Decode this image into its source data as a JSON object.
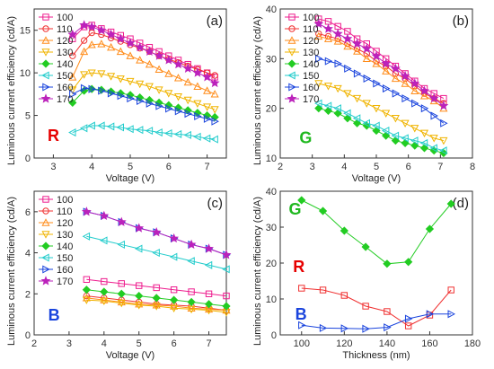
{
  "figure": {
    "ylabel_left": "Luminous current efficiency (cd/A)",
    "ylabel_right": "Luminous current efficiency (cd/A)"
  },
  "chart_data": [
    {
      "type": "line",
      "panel_tag": "(a)",
      "color_letter": "R",
      "color_letter_color": "#e60000",
      "xlabel": "Voltage (V)",
      "xlim": [
        2.5,
        7.5
      ],
      "ylim": [
        0,
        17.5
      ],
      "xticks": [
        3,
        4,
        5,
        6,
        7
      ],
      "yticks": [
        0,
        5,
        10,
        15
      ],
      "legend": "top-left",
      "x": [
        3.5,
        3.8,
        4.0,
        4.25,
        4.5,
        4.75,
        5.0,
        5.25,
        5.5,
        5.75,
        6.0,
        6.25,
        6.5,
        6.75,
        7.0,
        7.2
      ],
      "series": [
        {
          "name": "100",
          "color": "#ee1c8e",
          "marker": "square",
          "values": [
            14.0,
            15.4,
            15.6,
            15.2,
            14.8,
            14.4,
            14.0,
            13.5,
            13.0,
            12.5,
            12.0,
            11.5,
            11.0,
            10.5,
            10.0,
            9.5
          ]
        },
        {
          "name": "110",
          "color": "#f03030",
          "marker": "circle",
          "values": [
            12.0,
            13.8,
            14.7,
            14.5,
            14.1,
            13.7,
            13.3,
            12.9,
            12.5,
            12.0,
            11.6,
            11.2,
            10.8,
            10.4,
            10.0,
            9.7
          ]
        },
        {
          "name": "120",
          "color": "#ff8c1a",
          "marker": "triangle-up",
          "values": [
            9.5,
            12.5,
            13.3,
            13.4,
            13.0,
            12.5,
            12.0,
            11.5,
            11.0,
            10.4,
            9.9,
            9.4,
            8.9,
            8.4,
            7.9,
            7.5
          ]
        },
        {
          "name": "130",
          "color": "#f0b400",
          "marker": "triangle-down",
          "values": [
            8.0,
            9.8,
            10.0,
            9.9,
            9.6,
            9.3,
            9.0,
            8.7,
            8.4,
            8.0,
            7.6,
            7.2,
            6.8,
            6.4,
            6.0,
            5.7
          ]
        },
        {
          "name": "140",
          "color": "#22cc22",
          "marker": "diamond",
          "values": [
            6.5,
            7.9,
            8.1,
            8.0,
            7.8,
            7.6,
            7.4,
            7.1,
            6.8,
            6.5,
            6.2,
            5.9,
            5.6,
            5.3,
            5.0,
            4.8
          ]
        },
        {
          "name": "150",
          "color": "#22cccc",
          "marker": "triangle-left",
          "values": [
            3.0,
            3.5,
            3.8,
            3.8,
            3.7,
            3.6,
            3.4,
            3.3,
            3.2,
            3.0,
            2.9,
            2.8,
            2.7,
            2.5,
            2.3,
            2.2
          ]
        },
        {
          "name": "160",
          "color": "#1a44dd",
          "marker": "triangle-right",
          "values": [
            7.5,
            8.2,
            8.1,
            7.9,
            7.6,
            7.3,
            7.0,
            6.7,
            6.4,
            6.1,
            5.8,
            5.5,
            5.2,
            4.9,
            4.6,
            4.3
          ]
        },
        {
          "name": "170",
          "color": "#bb22bb",
          "marker": "star",
          "values": [
            14.5,
            15.6,
            15.4,
            15.0,
            14.5,
            14.0,
            13.5,
            13.0,
            12.5,
            12.0,
            11.5,
            11.0,
            10.5,
            10.0,
            9.5,
            8.8
          ]
        }
      ]
    },
    {
      "type": "line",
      "panel_tag": "(b)",
      "color_letter": "G",
      "color_letter_color": "#1fb81f",
      "xlabel": "Voltage (V)",
      "xlim": [
        2,
        8
      ],
      "ylim": [
        10,
        40
      ],
      "xticks": [
        2,
        3,
        4,
        5,
        6,
        7,
        8
      ],
      "yticks": [
        10,
        20,
        30,
        40
      ],
      "legend": "top-left",
      "x": [
        3.2,
        3.5,
        3.8,
        4.1,
        4.4,
        4.7,
        5.0,
        5.3,
        5.6,
        5.9,
        6.2,
        6.5,
        6.8,
        7.1
      ],
      "series": [
        {
          "name": "100",
          "color": "#ee1c8e",
          "marker": "square",
          "values": [
            38.0,
            37.5,
            36.5,
            35.5,
            34.0,
            33.0,
            31.5,
            30.0,
            28.5,
            27.0,
            25.5,
            24.0,
            23.0,
            22.0
          ]
        },
        {
          "name": "110",
          "color": "#f03030",
          "marker": "circle",
          "values": [
            35.0,
            34.5,
            34.0,
            33.0,
            32.0,
            31.0,
            29.5,
            28.5,
            27.0,
            26.0,
            24.5,
            23.0,
            22.0,
            21.0
          ]
        },
        {
          "name": "120",
          "color": "#ff8c1a",
          "marker": "triangle-up",
          "values": [
            34.5,
            34.0,
            33.5,
            32.5,
            31.5,
            30.0,
            29.0,
            27.5,
            26.0,
            25.0,
            23.5,
            22.5,
            21.5,
            20.0
          ]
        },
        {
          "name": "130",
          "color": "#f0b400",
          "marker": "triangle-down",
          "values": [
            25.0,
            24.5,
            24.0,
            23.0,
            22.0,
            21.0,
            20.0,
            19.0,
            18.0,
            17.0,
            16.0,
            15.0,
            14.0,
            13.5
          ]
        },
        {
          "name": "140",
          "color": "#22cc22",
          "marker": "diamond",
          "values": [
            20.0,
            19.5,
            19.0,
            18.0,
            17.0,
            16.5,
            15.5,
            14.5,
            13.5,
            13.0,
            12.5,
            12.0,
            11.5,
            11.0
          ]
        },
        {
          "name": "150",
          "color": "#22cccc",
          "marker": "triangle-left",
          "values": [
            21.0,
            20.5,
            20.0,
            19.0,
            18.0,
            17.0,
            16.5,
            15.5,
            14.5,
            14.0,
            13.5,
            13.0,
            12.0,
            11.5
          ]
        },
        {
          "name": "160",
          "color": "#1a44dd",
          "marker": "triangle-right",
          "values": [
            30.0,
            29.5,
            29.0,
            28.0,
            27.0,
            26.0,
            25.0,
            24.0,
            23.0,
            22.0,
            21.0,
            20.0,
            18.5,
            17.0
          ]
        },
        {
          "name": "170",
          "color": "#bb22bb",
          "marker": "star",
          "values": [
            37.0,
            36.0,
            35.0,
            34.0,
            33.0,
            32.0,
            30.5,
            29.0,
            28.0,
            26.5,
            25.0,
            23.5,
            22.0,
            20.5
          ]
        }
      ]
    },
    {
      "type": "line",
      "panel_tag": "(c)",
      "color_letter": "B",
      "color_letter_color": "#1a44dd",
      "xlabel": "Voltage (V)",
      "xlim": [
        2,
        7.5
      ],
      "ylim": [
        0,
        7
      ],
      "xticks": [
        2,
        3,
        4,
        5,
        6,
        7
      ],
      "yticks": [
        0,
        2,
        4,
        6
      ],
      "legend": "top-left",
      "x": [
        3.5,
        4.0,
        4.5,
        5.0,
        5.5,
        6.0,
        6.5,
        7.0,
        7.5
      ],
      "series": [
        {
          "name": "100",
          "color": "#ee1c8e",
          "marker": "square",
          "values": [
            2.7,
            2.6,
            2.5,
            2.4,
            2.3,
            2.2,
            2.1,
            2.0,
            1.9
          ]
        },
        {
          "name": "110",
          "color": "#f03030",
          "marker": "circle",
          "values": [
            1.9,
            1.8,
            1.7,
            1.6,
            1.5,
            1.45,
            1.4,
            1.3,
            1.2
          ]
        },
        {
          "name": "120",
          "color": "#ff8c1a",
          "marker": "triangle-up",
          "values": [
            1.8,
            1.7,
            1.6,
            1.5,
            1.45,
            1.4,
            1.3,
            1.25,
            1.2
          ]
        },
        {
          "name": "130",
          "color": "#f0b400",
          "marker": "triangle-down",
          "values": [
            1.7,
            1.65,
            1.55,
            1.45,
            1.4,
            1.3,
            1.25,
            1.2,
            1.1
          ]
        },
        {
          "name": "140",
          "color": "#22cc22",
          "marker": "diamond",
          "values": [
            2.2,
            2.1,
            2.0,
            1.9,
            1.8,
            1.7,
            1.6,
            1.5,
            1.4
          ]
        },
        {
          "name": "150",
          "color": "#22cccc",
          "marker": "triangle-left",
          "values": [
            4.8,
            4.6,
            4.4,
            4.2,
            4.0,
            3.8,
            3.6,
            3.4,
            3.2
          ]
        },
        {
          "name": "160",
          "color": "#1a44dd",
          "marker": "triangle-right",
          "values": [
            6.0,
            5.8,
            5.5,
            5.2,
            5.0,
            4.7,
            4.4,
            4.2,
            3.9
          ]
        },
        {
          "name": "170",
          "color": "#bb22bb",
          "marker": "star",
          "values": [
            6.0,
            5.8,
            5.5,
            5.2,
            5.0,
            4.7,
            4.4,
            4.2,
            3.9
          ]
        }
      ]
    },
    {
      "type": "line",
      "panel_tag": "(d)",
      "xlabel": "Thickness (nm)",
      "xlim": [
        90,
        180
      ],
      "ylim": [
        0,
        40
      ],
      "xticks": [
        100,
        120,
        140,
        160,
        180
      ],
      "yticks": [
        0,
        10,
        20,
        30,
        40
      ],
      "x": [
        100,
        110,
        120,
        130,
        140,
        150,
        160,
        170
      ],
      "series": [
        {
          "name": "G",
          "label_color": "#1fb81f",
          "color": "#22cc22",
          "marker": "diamond",
          "values": [
            37.5,
            34.5,
            29.0,
            24.5,
            19.8,
            20.3,
            29.5,
            36.5
          ]
        },
        {
          "name": "R",
          "label_color": "#e60000",
          "color": "#f03030",
          "marker": "square-open",
          "values": [
            13.0,
            12.5,
            11.0,
            8.0,
            6.5,
            2.5,
            5.5,
            12.5
          ]
        },
        {
          "name": "B",
          "label_color": "#1a44dd",
          "color": "#1a44dd",
          "marker": "triangle-right",
          "values": [
            2.7,
            1.9,
            1.8,
            1.7,
            2.1,
            4.5,
            5.8,
            5.8
          ]
        }
      ]
    }
  ]
}
